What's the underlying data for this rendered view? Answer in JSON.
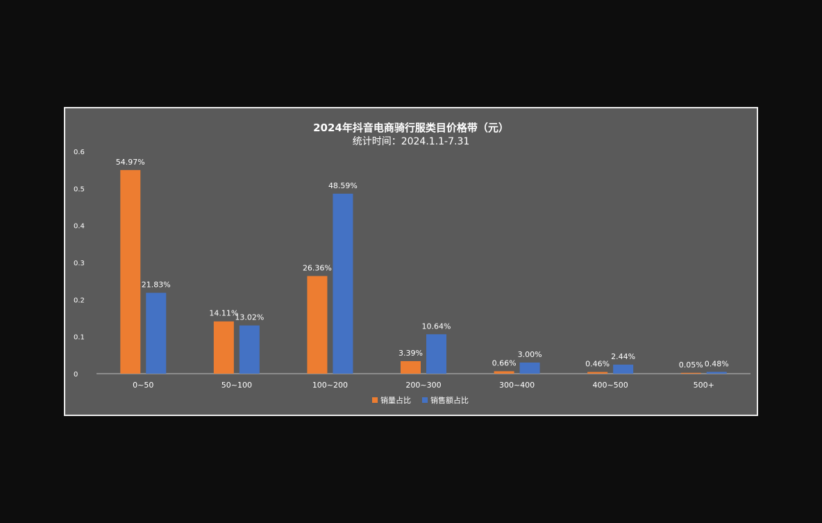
{
  "chart_data": {
    "type": "bar",
    "title": "2024年抖音电商骑行服类目价格带（元）",
    "subtitle": "统计时间：2024.1.1-7.31",
    "categories": [
      "0~50",
      "50~100",
      "100~200",
      "200~300",
      "300~400",
      "400~500",
      "500+"
    ],
    "series": [
      {
        "name": "销量占比",
        "values": [
          0.5497,
          0.1411,
          0.2636,
          0.0339,
          0.0066,
          0.0046,
          0.0005
        ],
        "labels": [
          "54.97%",
          "14.11%",
          "26.36%",
          "3.39%",
          "0.66%",
          "0.46%",
          "0.05%"
        ]
      },
      {
        "name": "销售额占比",
        "values": [
          0.2183,
          0.1302,
          0.4859,
          0.1064,
          0.03,
          0.0244,
          0.0048
        ],
        "labels": [
          "21.83%",
          "13.02%",
          "48.59%",
          "10.64%",
          "3.00%",
          "2.44%",
          "0.48%"
        ]
      }
    ],
    "yticks": [
      "0",
      "0.1",
      "0.2",
      "0.3",
      "0.4",
      "0.5",
      "0.6"
    ],
    "ylim": [
      0,
      0.6
    ],
    "grid": false,
    "legend": "bottom",
    "colors": [
      "#ed7d31",
      "#4472c4"
    ],
    "background": "#5a5a5a"
  }
}
